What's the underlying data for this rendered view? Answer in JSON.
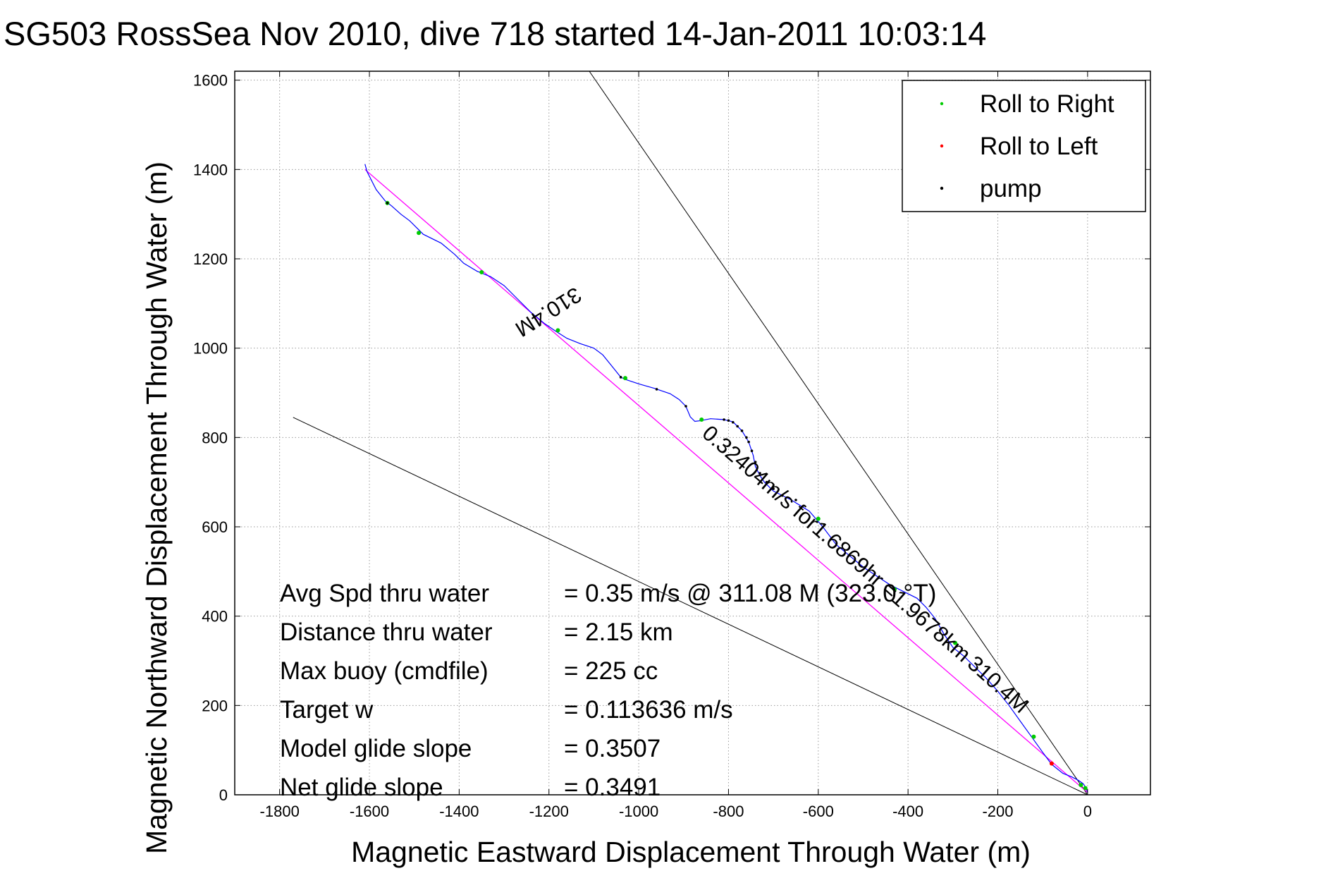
{
  "chart_data": {
    "type": "line",
    "title": "SG503 RossSea Nov 2010, dive 718 started 14-Jan-2011 10:03:14",
    "xlabel": "Magnetic Eastward Displacement Through Water (m)",
    "ylabel": "Magnetic Northward Displacement Through Water (m)",
    "xlim": [
      -1900,
      140
    ],
    "ylim": [
      0,
      1620
    ],
    "xticks": [
      -1800,
      -1600,
      -1400,
      -1200,
      -1000,
      -800,
      -600,
      -400,
      -200,
      0
    ],
    "yticks": [
      0,
      200,
      400,
      600,
      800,
      1000,
      1200,
      1400,
      1600
    ],
    "grid": true,
    "legend_position": "top-right",
    "legend": [
      {
        "label": "Roll to Right",
        "color": "#00cc00"
      },
      {
        "label": "Roll to Left",
        "color": "#ff0000"
      },
      {
        "label": "pump",
        "color": "#000000"
      }
    ],
    "track": {
      "color": "#0000ff",
      "points": [
        [
          0,
          5
        ],
        [
          -3,
          15
        ],
        [
          -10,
          25
        ],
        [
          -20,
          32
        ],
        [
          -35,
          40
        ],
        [
          -55,
          48
        ],
        [
          -80,
          68
        ],
        [
          -100,
          95
        ],
        [
          -125,
          130
        ],
        [
          -150,
          165
        ],
        [
          -175,
          200
        ],
        [
          -200,
          232
        ],
        [
          -225,
          260
        ],
        [
          -250,
          285
        ],
        [
          -275,
          310
        ],
        [
          -300,
          330
        ],
        [
          -320,
          360
        ],
        [
          -340,
          395
        ],
        [
          -360,
          420
        ],
        [
          -380,
          440
        ],
        [
          -410,
          455
        ],
        [
          -440,
          470
        ],
        [
          -470,
          490
        ],
        [
          -500,
          510
        ],
        [
          -530,
          535
        ],
        [
          -560,
          560
        ],
        [
          -590,
          600
        ],
        [
          -620,
          635
        ],
        [
          -660,
          660
        ],
        [
          -700,
          680
        ],
        [
          -720,
          700
        ],
        [
          -730,
          715
        ],
        [
          -740,
          735
        ],
        [
          -745,
          760
        ],
        [
          -755,
          790
        ],
        [
          -770,
          815
        ],
        [
          -790,
          835
        ],
        [
          -810,
          840
        ],
        [
          -840,
          842
        ],
        [
          -860,
          838
        ],
        [
          -875,
          836
        ],
        [
          -885,
          846
        ],
        [
          -895,
          870
        ],
        [
          -910,
          885
        ],
        [
          -930,
          898
        ],
        [
          -965,
          910
        ],
        [
          -1000,
          920
        ],
        [
          -1030,
          930
        ],
        [
          -1040,
          935
        ],
        [
          -1060,
          960
        ],
        [
          -1080,
          985
        ],
        [
          -1100,
          1000
        ],
        [
          -1130,
          1010
        ],
        [
          -1160,
          1022
        ],
        [
          -1185,
          1038
        ],
        [
          -1210,
          1055
        ],
        [
          -1240,
          1080
        ],
        [
          -1270,
          1110
        ],
        [
          -1300,
          1140
        ],
        [
          -1330,
          1160
        ],
        [
          -1360,
          1172
        ],
        [
          -1390,
          1190
        ],
        [
          -1410,
          1210
        ],
        [
          -1440,
          1235
        ],
        [
          -1480,
          1255
        ],
        [
          -1510,
          1285
        ],
        [
          -1530,
          1300
        ],
        [
          -1550,
          1318
        ],
        [
          -1565,
          1330
        ],
        [
          -1585,
          1355
        ],
        [
          -1605,
          1395
        ],
        [
          -1610,
          1412
        ]
      ]
    },
    "straight_track": {
      "color": "#ff00ff",
      "points": [
        [
          0,
          5
        ],
        [
          -1610,
          1400
        ]
      ]
    },
    "cone_lines": [
      {
        "points": [
          [
            0,
            0
          ],
          [
            -1110,
            1620
          ]
        ]
      },
      {
        "points": [
          [
            0,
            0
          ],
          [
            -1770,
            845
          ]
        ]
      }
    ],
    "roll_right_points": [
      [
        -5,
        15
      ],
      [
        -15,
        22
      ],
      [
        -120,
        130
      ],
      [
        -295,
        340
      ],
      [
        -430,
        460
      ],
      [
        -600,
        618
      ],
      [
        -860,
        840
      ],
      [
        -1030,
        933
      ],
      [
        -1180,
        1040
      ],
      [
        -1350,
        1170
      ],
      [
        -1490,
        1258
      ],
      [
        -1560,
        1325
      ]
    ],
    "roll_left_points": [
      [
        -80,
        70
      ]
    ],
    "pump_points": [
      [
        -650,
        660
      ],
      [
        -680,
        670
      ],
      [
        -700,
        685
      ],
      [
        -715,
        700
      ],
      [
        -730,
        720
      ],
      [
        -740,
        745
      ],
      [
        -748,
        770
      ],
      [
        -755,
        790
      ],
      [
        -760,
        800
      ],
      [
        -770,
        815
      ],
      [
        -780,
        825
      ],
      [
        -790,
        834
      ],
      [
        -800,
        838
      ],
      [
        -810,
        840
      ],
      [
        -895,
        870
      ],
      [
        -960,
        908
      ],
      [
        -1040,
        935
      ],
      [
        -1560,
        1325
      ]
    ],
    "annotations": [
      {
        "text": "310.4M",
        "x": -1210,
        "y": 1095,
        "angle": 148
      },
      {
        "text": "310.4M",
        "x": -210,
        "y": 235,
        "angle": 42
      },
      {
        "text": "0.32404m/s for1.6869hr =1.9678km",
        "x": -570,
        "y": 550,
        "angle": 41
      }
    ],
    "stats": [
      {
        "label": "Avg Spd thru water",
        "value": "=  0.35 m/s @ 311.08 M (323.0 °T)"
      },
      {
        "label": "Distance thru water",
        "value": "=  2.15 km"
      },
      {
        "label": "Max buoy (cmdfile)",
        "value": "= 225 cc"
      },
      {
        "label": "Target w",
        "value": "= 0.113636 m/s"
      },
      {
        "label": "Model glide slope",
        "value": "= 0.3507"
      },
      {
        "label": "Net glide slope",
        "value": "= 0.3491"
      }
    ]
  }
}
